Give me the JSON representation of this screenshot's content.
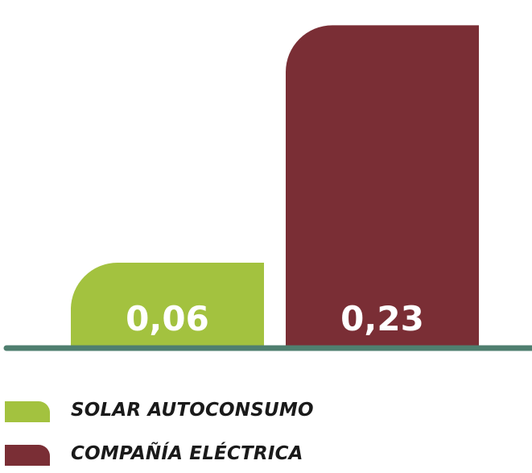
{
  "chart_data": {
    "type": "bar",
    "categories": [
      "SOLAR AUTOCONSUMO",
      "COMPAÑÍA ELÉCTRICA"
    ],
    "values": [
      0.06,
      0.23
    ],
    "value_labels": [
      "0,06",
      "0,23"
    ],
    "colors": [
      "#a3c23f",
      "#7a2e35"
    ],
    "baseline_color": "#4f7f6f",
    "ylim": [
      0,
      0.24
    ],
    "grid": false,
    "legend": {
      "placement": "bottom-left",
      "entries": [
        {
          "label": "SOLAR AUTOCONSUMO",
          "color": "#a3c23f"
        },
        {
          "label": "COMPAÑÍA ELÉCTRICA",
          "color": "#7a2e35"
        }
      ]
    }
  }
}
